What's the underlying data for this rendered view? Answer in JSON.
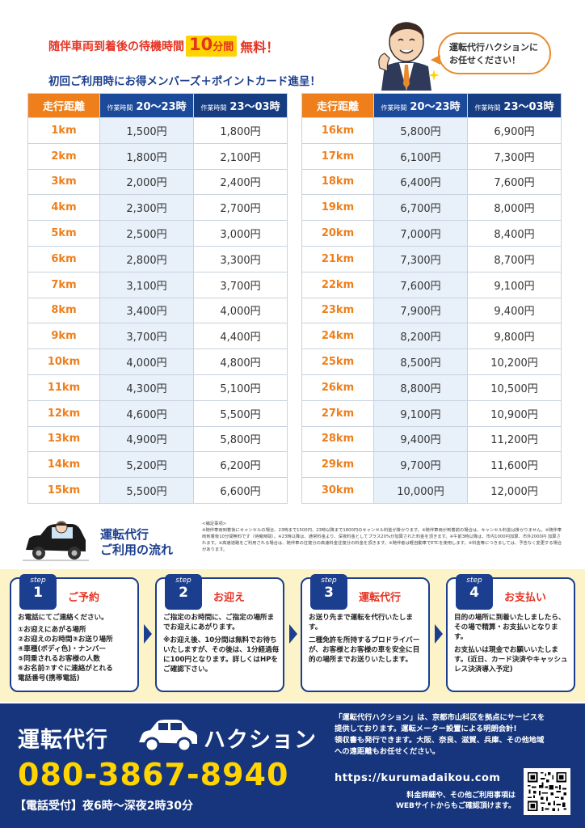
{
  "header": {
    "promo_line1_pre": "随伴車両到着後の待機時間",
    "promo_line1_minutes": "10",
    "promo_line1_unit": "分間",
    "promo_line1_post": "無料！",
    "promo_line2": "初回ご利用時にお得メンバーズ＋ポイントカード進呈！",
    "speech_line1": "運転代行ハクションに",
    "speech_line2": "お任せください！"
  },
  "table": {
    "col_distance": "走行距離",
    "col_time_prefix": "作業時間",
    "col_time1": "20～23時",
    "col_time2": "23～03時",
    "left_rows": [
      {
        "km": "1km",
        "p1": "1,500円",
        "p2": "1,800円"
      },
      {
        "km": "2km",
        "p1": "1,800円",
        "p2": "2,100円"
      },
      {
        "km": "3km",
        "p1": "2,000円",
        "p2": "2,400円"
      },
      {
        "km": "4km",
        "p1": "2,300円",
        "p2": "2,700円"
      },
      {
        "km": "5km",
        "p1": "2,500円",
        "p2": "3,000円"
      },
      {
        "km": "6km",
        "p1": "2,800円",
        "p2": "3,300円"
      },
      {
        "km": "7km",
        "p1": "3,100円",
        "p2": "3,700円"
      },
      {
        "km": "8km",
        "p1": "3,400円",
        "p2": "4,000円"
      },
      {
        "km": "9km",
        "p1": "3,700円",
        "p2": "4,400円"
      },
      {
        "km": "10km",
        "p1": "4,000円",
        "p2": "4,800円"
      },
      {
        "km": "11km",
        "p1": "4,300円",
        "p2": "5,100円"
      },
      {
        "km": "12km",
        "p1": "4,600円",
        "p2": "5,500円"
      },
      {
        "km": "13km",
        "p1": "4,900円",
        "p2": "5,800円"
      },
      {
        "km": "14km",
        "p1": "5,200円",
        "p2": "6,200円"
      },
      {
        "km": "15km",
        "p1": "5,500円",
        "p2": "6,600円"
      }
    ],
    "right_rows": [
      {
        "km": "16km",
        "p1": "5,800円",
        "p2": "6,900円"
      },
      {
        "km": "17km",
        "p1": "6,100円",
        "p2": "7,300円"
      },
      {
        "km": "18km",
        "p1": "6,400円",
        "p2": "7,600円"
      },
      {
        "km": "19km",
        "p1": "6,700円",
        "p2": "8,000円"
      },
      {
        "km": "20km",
        "p1": "7,000円",
        "p2": "8,400円"
      },
      {
        "km": "21km",
        "p1": "7,300円",
        "p2": "8,700円"
      },
      {
        "km": "22km",
        "p1": "7,600円",
        "p2": "9,100円"
      },
      {
        "km": "23km",
        "p1": "7,900円",
        "p2": "9,400円"
      },
      {
        "km": "24km",
        "p1": "8,200円",
        "p2": "9,800円"
      },
      {
        "km": "25km",
        "p1": "8,500円",
        "p2": "10,200円"
      },
      {
        "km": "26km",
        "p1": "8,800円",
        "p2": "10,500円"
      },
      {
        "km": "27km",
        "p1": "9,100円",
        "p2": "10,900円"
      },
      {
        "km": "28km",
        "p1": "9,400円",
        "p2": "11,200円"
      },
      {
        "km": "29km",
        "p1": "9,700円",
        "p2": "11,600円"
      },
      {
        "km": "30km",
        "p1": "10,000円",
        "p2": "12,000円"
      }
    ]
  },
  "flow": {
    "title_line1": "運転代行",
    "title_line2": "ご利用の流れ",
    "notes_title": "<補足事項>",
    "notes_body": "※随伴車両到着後にキャンセルの場合、23時まで1500円、23時以降まで1800円のキャンセル料金が掛かります。※随伴車両が到着前の場合は、キャンセル料金は掛かりません。※随伴車両到着後10分間無料です（待機時間）。※23時以降は、通常料金より、深夜料金としてプラス20%が加算された料金を頂きます。※午前3時以降は、市内1000円加算、市外2000円 加算されます。※高速道路をご利用される場合は、随伴車の往復分の高速料金往復分の料金を頂きます。※随伴者は軽自動車でETCを使用します。※料金等につきましては、予告なく変更する場合があります。"
  },
  "steps": [
    {
      "label": "step",
      "number": "1",
      "title": "ご予約",
      "body": "お電話にてご連絡ください。",
      "items": [
        "①お迎えにあがる場所",
        "②お迎えのお時間③お送り場所",
        "④車種(ボディ色)・ナンバー",
        "⑤同乗されるお客様の人数",
        "⑥お名前⑦すぐに連絡がとれる",
        "電話番号(携帯電話)"
      ]
    },
    {
      "label": "step",
      "number": "2",
      "title": "お迎え",
      "body": "ご指定のお時間に、ご指定の場所までお迎えにあがります。",
      "sub": "※お迎え後、10分間は無料でお待ちいたしますが、その後は、1分経過毎に100円となります。詳しくはHPをご確認下さい。"
    },
    {
      "label": "step",
      "number": "3",
      "title": "運転代行",
      "body": "お送り先まで運転を代行いたします。",
      "sub": "二種免許を所持するプロドライバーが、お客様とお客様の車を安全に目的の場所までお送りいたします。"
    },
    {
      "label": "step",
      "number": "4",
      "title": "お支払い",
      "body": "目的の場所に到着いたしましたら、その場で精算・お支払いとなります。",
      "sub": "お支払いは現金でお願いいたします。(近日、カード決済やキャッシュレス決済導入予定)"
    }
  ],
  "footer": {
    "brand_left": "運転代行",
    "brand_right": "ハクション",
    "phone": "080-3867-8940",
    "hours": "【電話受付】夜6時～深夜2時30分",
    "about_line1": "「運転代行ハクション」は、京都市山科区を拠点にサービスを",
    "about_line2": "提供しております。運転メーター設置による明朗会計!",
    "about_line3": "領収書も発行できます。大阪、奈良、滋賀、兵庫、その他地域",
    "about_line4": "への遠距離もお任せください。",
    "url": "https://kurumadaikou.com",
    "web_note_line1": "料金詳細や、その他ご利用事項は",
    "web_note_line2": "WEBサイトからもご確認頂けます。"
  },
  "colors": {
    "orange": "#ee7f1a",
    "navy": "#1b3e8e",
    "red": "#e53322",
    "yellow": "#ffd400",
    "pale_yellow": "#fdf3c8"
  },
  "icons": [
    "businessman-icon",
    "car-with-driver-icon",
    "car-icon",
    "qr-code-icon"
  ]
}
